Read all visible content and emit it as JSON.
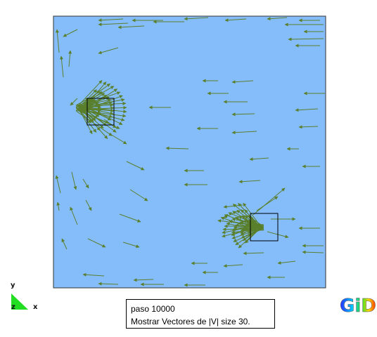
{
  "colors": {
    "domain_fill": "#85bdfb",
    "domain_border": "#333333",
    "vector": "#5a7f2b",
    "triad_fill": "#22dd22",
    "source_box": "#000000"
  },
  "axes": {
    "y": "y",
    "z": "z",
    "x": "x"
  },
  "info": {
    "line1": "paso 10000",
    "line2": "Mostrar Vectores de |V| size 30."
  },
  "logo": {
    "text": "GiD"
  },
  "icons": [
    "axis-triad-icon",
    "gid-logo-icon"
  ]
}
